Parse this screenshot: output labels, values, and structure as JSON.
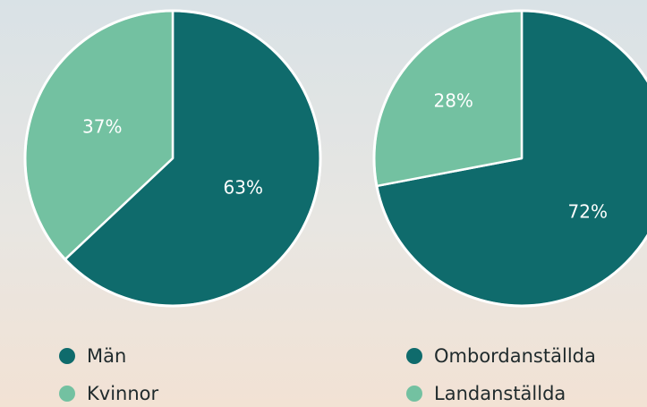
{
  "chart_data": [
    {
      "type": "pie",
      "categories": [
        "Män",
        "Kvinnor"
      ],
      "values": [
        63,
        37
      ],
      "value_labels": [
        "63%",
        "37%"
      ],
      "colors": [
        "#0f6b6c",
        "#73c1a1"
      ]
    },
    {
      "type": "pie",
      "categories": [
        "Ombordanställda",
        "Landanställda"
      ],
      "values": [
        72,
        28
      ],
      "value_labels": [
        "72%",
        "28%"
      ],
      "colors": [
        "#0f6b6c",
        "#73c1a1"
      ]
    }
  ]
}
